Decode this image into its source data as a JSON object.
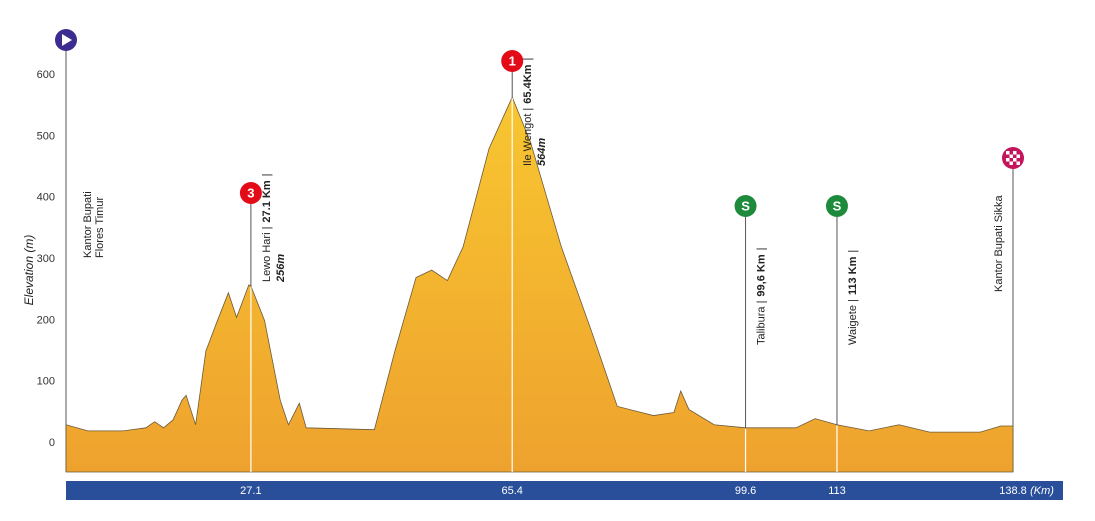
{
  "chart_data": {
    "type": "area",
    "y_label": "Elevation (m)",
    "x_unit_label": "(Km)",
    "x": [
      0,
      3.2,
      8.4,
      11.7,
      13,
      14.3,
      15.7,
      17,
      17.6,
      19,
      20.5,
      22.2,
      23.8,
      25,
      26.8,
      27.1,
      29.1,
      31.4,
      32.6,
      34.2,
      35.2,
      45.2,
      48.2,
      51.3,
      53.6,
      55.9,
      58.2,
      62,
      65.4,
      68.1,
      72.6,
      77.1,
      80.8,
      86.1,
      89.1,
      90.1,
      91.3,
      95,
      99.6,
      107,
      109.8,
      113,
      117.7,
      122.1,
      126.6,
      134,
      137,
      138.8
    ],
    "values": [
      30,
      20,
      20,
      25,
      35,
      25,
      38,
      70,
      78,
      30,
      150,
      200,
      245,
      205,
      258,
      256,
      200,
      70,
      30,
      65,
      25,
      22,
      150,
      270,
      282,
      265,
      320,
      480,
      564,
      490,
      320,
      180,
      60,
      45,
      50,
      85,
      55,
      30,
      25,
      25,
      40,
      30,
      20,
      30,
      18,
      18,
      28,
      28
    ],
    "xlim": [
      0,
      138.8
    ],
    "ylim": [
      -47,
      600
    ],
    "xticks": [
      27.1,
      65.4,
      99.6,
      113,
      138.8
    ],
    "yticks": [
      0,
      100,
      200,
      300,
      400,
      500,
      600
    ],
    "fill_top": "#f8c630",
    "fill_bottom": "#eea22e",
    "axis_bar_color": "#2a4f9a",
    "annotations": [
      {
        "x": 0,
        "icon": "start",
        "color": "#3b2d8f",
        "label": [
          "Kantor Bupati",
          "Flores Timur"
        ]
      },
      {
        "x": 27.1,
        "icon": "badge",
        "badge": "3",
        "color": "#e30b17",
        "label": [
          "Lewo Hari |",
          "27.1 Km",
          "|"
        ],
        "elevation_label": "256m"
      },
      {
        "x": 65.4,
        "icon": "badge",
        "badge": "1",
        "color": "#e30b17",
        "label": [
          "Ile Wengot |",
          "65.4Km",
          "|"
        ],
        "elevation_label": "564m"
      },
      {
        "x": 99.6,
        "icon": "badge",
        "badge": "S",
        "color": "#1e8b3c",
        "label": [
          "Talibura |",
          "99,6 Km",
          "|"
        ]
      },
      {
        "x": 113,
        "icon": "badge",
        "badge": "S",
        "color": "#1e8b3c",
        "label": [
          "Waigete |",
          "113 Km",
          "|"
        ]
      },
      {
        "x": 138.8,
        "icon": "finish",
        "color": "#c4145c",
        "label": [
          "Kantor Bupati Sikka"
        ]
      }
    ]
  }
}
